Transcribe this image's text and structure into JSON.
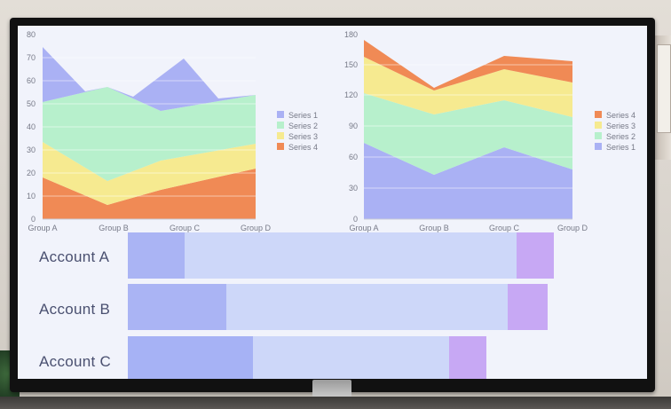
{
  "left_chart": {
    "y_ticks": [
      "0",
      "10",
      "20",
      "30",
      "40",
      "50",
      "60",
      "70",
      "80"
    ],
    "x_labels": [
      "Group A",
      "Group B",
      "Group C",
      "Group D"
    ],
    "legend": [
      "Series 1",
      "Series 2",
      "Series 3",
      "Series 4"
    ]
  },
  "right_chart": {
    "y_ticks": [
      "0",
      "30",
      "60",
      "90",
      "120",
      "150",
      "180"
    ],
    "x_labels": [
      "Group A",
      "Group B",
      "Group C",
      "Group D"
    ],
    "legend": [
      "Series 4",
      "Series 3",
      "Series 2",
      "Series 1"
    ]
  },
  "bars": {
    "accounts": [
      "Account A",
      "Account B",
      "Account C"
    ]
  },
  "colors": {
    "series1": "#aab1f4",
    "series2": "#b7f0cc",
    "series3": "#f6ea90",
    "series4": "#f08a55",
    "bar_light": "#cfd8f8",
    "bar_dark": "#a9b6f5",
    "bar_purple": "#c7a8f4"
  }
}
